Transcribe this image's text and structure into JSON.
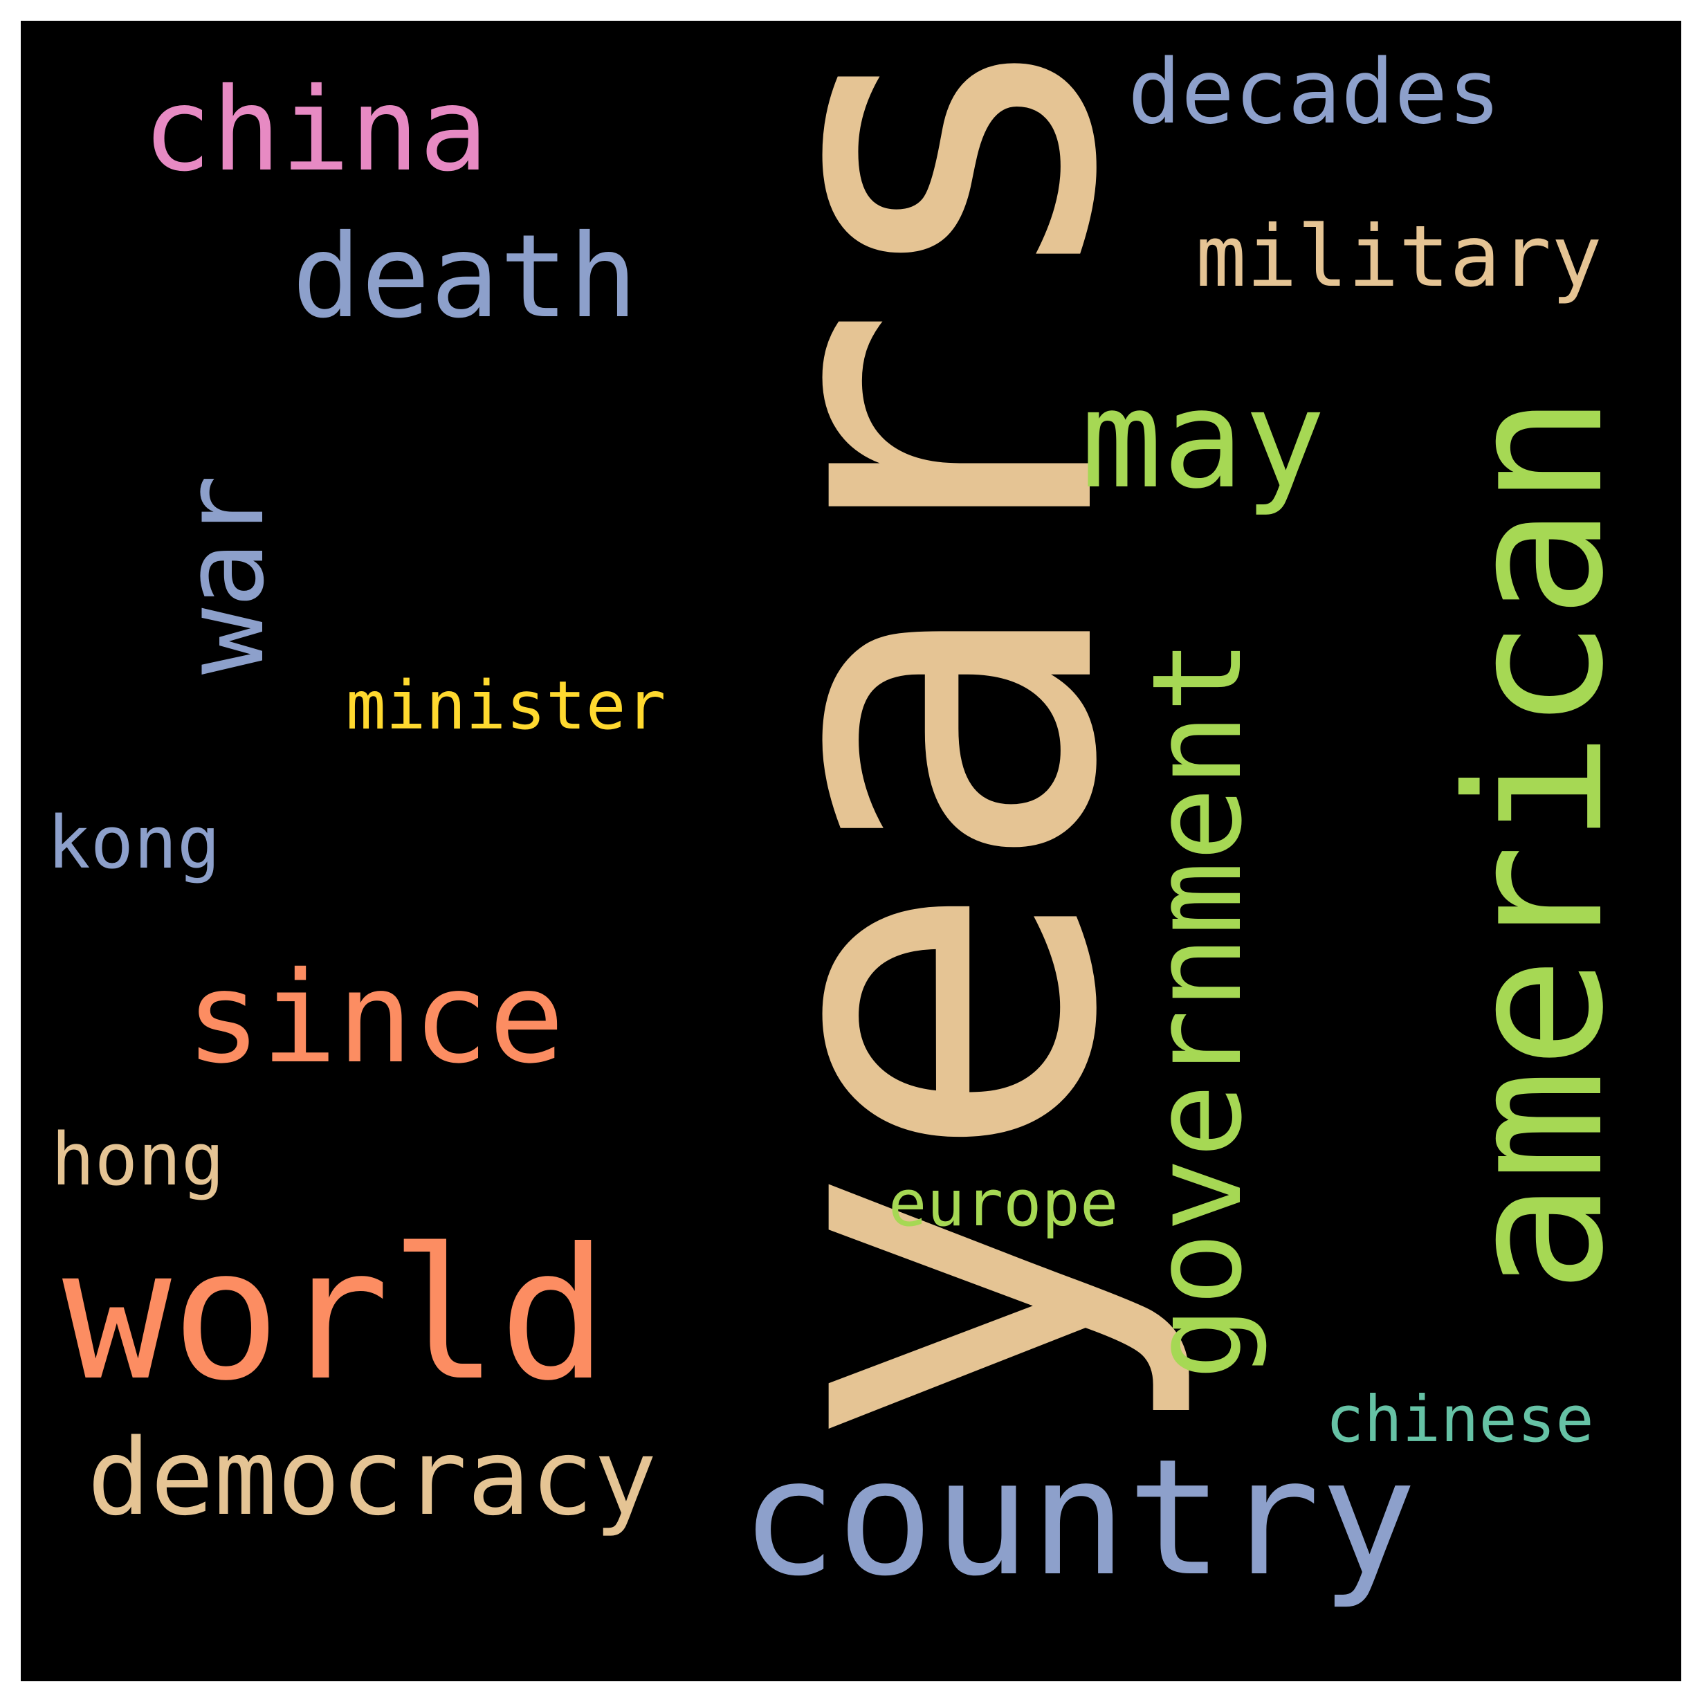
{
  "background_color": "#000000",
  "words": {
    "years": {
      "text": "years",
      "color": "#e5c494"
    },
    "american": {
      "text": "american",
      "color": "#a6d854"
    },
    "country": {
      "text": "country",
      "color": "#8da0cb"
    },
    "world": {
      "text": "world",
      "color": "#fc8d62"
    },
    "since": {
      "text": "since",
      "color": "#fc8d62"
    },
    "government": {
      "text": "government",
      "color": "#a6d854"
    },
    "may": {
      "text": "may",
      "color": "#a6d854"
    },
    "china": {
      "text": "china",
      "color": "#e78ac3"
    },
    "death": {
      "text": "death",
      "color": "#8da0cb"
    },
    "war": {
      "text": "war",
      "color": "#8da0cb"
    },
    "democracy": {
      "text": "democracy",
      "color": "#e5c494"
    },
    "decades": {
      "text": "decades",
      "color": "#8da0cb"
    },
    "military": {
      "text": "military",
      "color": "#e5c494"
    },
    "minister": {
      "text": "minister",
      "color": "#ffd92f"
    },
    "kong": {
      "text": "kong",
      "color": "#8da0cb"
    },
    "hong": {
      "text": "hong",
      "color": "#e5c494"
    },
    "chinese": {
      "text": "chinese",
      "color": "#66c2a5"
    },
    "europe": {
      "text": "europe",
      "color": "#a6d854"
    }
  }
}
